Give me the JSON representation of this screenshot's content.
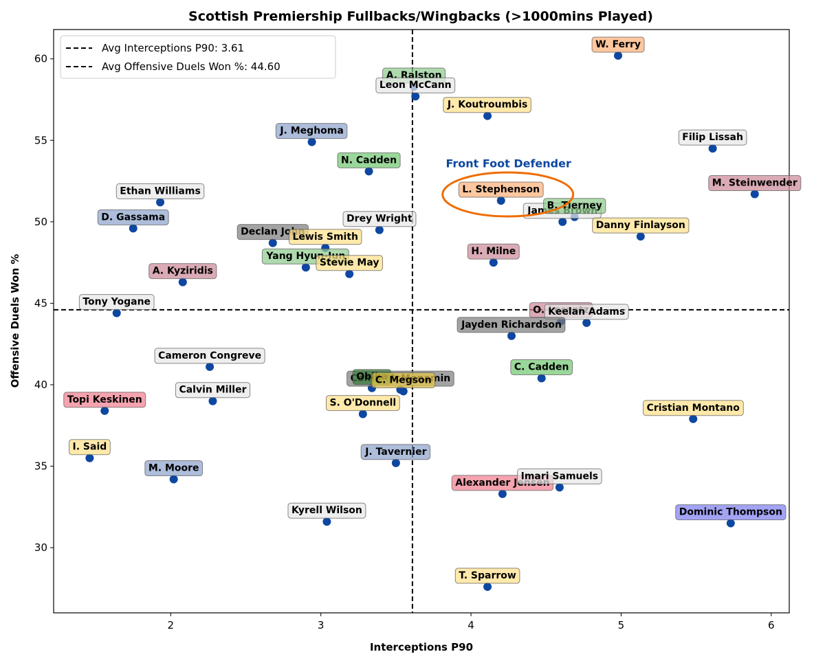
{
  "chart_data": {
    "type": "scatter",
    "title": "Scottish Premiership Fullbacks/Wingbacks (>1000mins Played)",
    "xlabel": "Interceptions P90",
    "ylabel": "Offensive Duels Won %",
    "xlim": [
      1.22,
      6.12
    ],
    "ylim": [
      26.0,
      61.8
    ],
    "xticks": [
      2,
      3,
      4,
      5,
      6
    ],
    "yticks": [
      30,
      35,
      40,
      45,
      50,
      55,
      60
    ],
    "grid": false,
    "point_color": "#0d47a1",
    "reference_lines": [
      {
        "axis": "x",
        "value": 3.61,
        "label": "Avg Interceptions P90: 3.61"
      },
      {
        "axis": "y",
        "value": 44.6,
        "label": "Avg Offensive Duels Won %: 44.60"
      }
    ],
    "legend_position": "upper-left",
    "annotation": {
      "text": "Front Foot Defender",
      "color": "#0d47a1",
      "x": 4.25,
      "y": 53.6,
      "highlight": "L. Stephenson",
      "highlight_color": "#ef6c00"
    },
    "points": [
      {
        "name": "W. Ferry",
        "x": 4.98,
        "y": 60.2,
        "color": "#ffb27a"
      },
      {
        "name": "A. Ralston",
        "x": 3.62,
        "y": 58.3,
        "color": "#8fcc8f"
      },
      {
        "name": "Leon McCann",
        "x": 3.63,
        "y": 57.7,
        "color": "#e8e8e8"
      },
      {
        "name": "J. Koutroumbis",
        "x": 4.11,
        "y": 56.5,
        "color": "#ffe08a"
      },
      {
        "name": "J. Meghoma",
        "x": 2.94,
        "y": 54.9,
        "color": "#8da4cc"
      },
      {
        "name": "Filip Lissah",
        "x": 5.61,
        "y": 54.5,
        "color": "#e8e8e8"
      },
      {
        "name": "N. Cadden",
        "x": 3.32,
        "y": 53.1,
        "color": "#73c873"
      },
      {
        "name": "L. Stephenson",
        "x": 4.2,
        "y": 51.3,
        "color": "#ffb27a"
      },
      {
        "name": "M. Steinwender",
        "x": 5.89,
        "y": 51.7,
        "color": "#cc8a9a"
      },
      {
        "name": "Ethan Williams",
        "x": 1.93,
        "y": 51.2,
        "color": "#e8e8e8"
      },
      {
        "name": "James Brown",
        "x": 4.61,
        "y": 50.0,
        "color": "#e8e8e8"
      },
      {
        "name": "B. Tierney",
        "x": 4.69,
        "y": 50.3,
        "color": "#8fcc8f"
      },
      {
        "name": "Danny Finlayson",
        "x": 5.13,
        "y": 49.1,
        "color": "#ffe08a"
      },
      {
        "name": "D. Gassama",
        "x": 1.75,
        "y": 49.6,
        "color": "#8da4cc"
      },
      {
        "name": "Drey Wright",
        "x": 3.39,
        "y": 49.5,
        "color": "#e8e8e8"
      },
      {
        "name": "Declan John",
        "x": 2.68,
        "y": 48.7,
        "color": "#808080"
      },
      {
        "name": "Lewis Smith",
        "x": 3.03,
        "y": 48.4,
        "color": "#ffe08a"
      },
      {
        "name": "Yang Hyun-Jun",
        "x": 2.9,
        "y": 47.2,
        "color": "#8fcc8f"
      },
      {
        "name": "Stevie May",
        "x": 3.19,
        "y": 46.8,
        "color": "#ffe08a"
      },
      {
        "name": "H. Milne",
        "x": 4.15,
        "y": 47.5,
        "color": "#cc8a9a"
      },
      {
        "name": "A. Kyziridis",
        "x": 2.08,
        "y": 46.3,
        "color": "#cc8a9a"
      },
      {
        "name": "Tony Yogane",
        "x": 1.64,
        "y": 44.4,
        "color": "#e8e8e8"
      },
      {
        "name": "O. Lorentz",
        "x": 4.6,
        "y": 43.9,
        "color": "#cc8a9a"
      },
      {
        "name": "Keelan Adams",
        "x": 4.77,
        "y": 43.8,
        "color": "#e8e8e8"
      },
      {
        "name": "Jayden Richardson",
        "x": 4.27,
        "y": 43.0,
        "color": "#808080"
      },
      {
        "name": "Cameron Congreve",
        "x": 2.26,
        "y": 41.1,
        "color": "#e8e8e8"
      },
      {
        "name": "C. Cadden",
        "x": 4.47,
        "y": 40.4,
        "color": "#73c873"
      },
      {
        "name": "Conor McMenamin",
        "x": 3.53,
        "y": 39.7,
        "color": "#808080"
      },
      {
        "name": "Obika",
        "x": 3.34,
        "y": 39.8,
        "color": "#3c7a3c"
      },
      {
        "name": "C. Megson",
        "x": 3.55,
        "y": 39.6,
        "color": "#e6c84a"
      },
      {
        "name": "Calvin Miller",
        "x": 2.28,
        "y": 39.0,
        "color": "#e8e8e8"
      },
      {
        "name": "Topi Keskinen",
        "x": 1.56,
        "y": 38.4,
        "color": "#f08090"
      },
      {
        "name": "S. O'Donnell",
        "x": 3.28,
        "y": 38.2,
        "color": "#ffe08a"
      },
      {
        "name": "Cristian Montano",
        "x": 5.48,
        "y": 37.9,
        "color": "#ffe08a"
      },
      {
        "name": "I. Said",
        "x": 1.46,
        "y": 35.5,
        "color": "#ffe08a"
      },
      {
        "name": "J. Tavernier",
        "x": 3.5,
        "y": 35.2,
        "color": "#8da4cc"
      },
      {
        "name": "M. Moore",
        "x": 2.02,
        "y": 34.2,
        "color": "#8da4cc"
      },
      {
        "name": "Alexander Jensen",
        "x": 4.21,
        "y": 33.3,
        "color": "#f08090"
      },
      {
        "name": "Imari Samuels",
        "x": 4.59,
        "y": 33.7,
        "color": "#e8e8e8"
      },
      {
        "name": "Dominic Thompson",
        "x": 5.73,
        "y": 31.5,
        "color": "#8080f0"
      },
      {
        "name": "Kyrell Wilson",
        "x": 3.04,
        "y": 31.6,
        "color": "#e8e8e8"
      },
      {
        "name": "T. Sparrow",
        "x": 4.11,
        "y": 27.6,
        "color": "#ffe08a"
      }
    ]
  }
}
